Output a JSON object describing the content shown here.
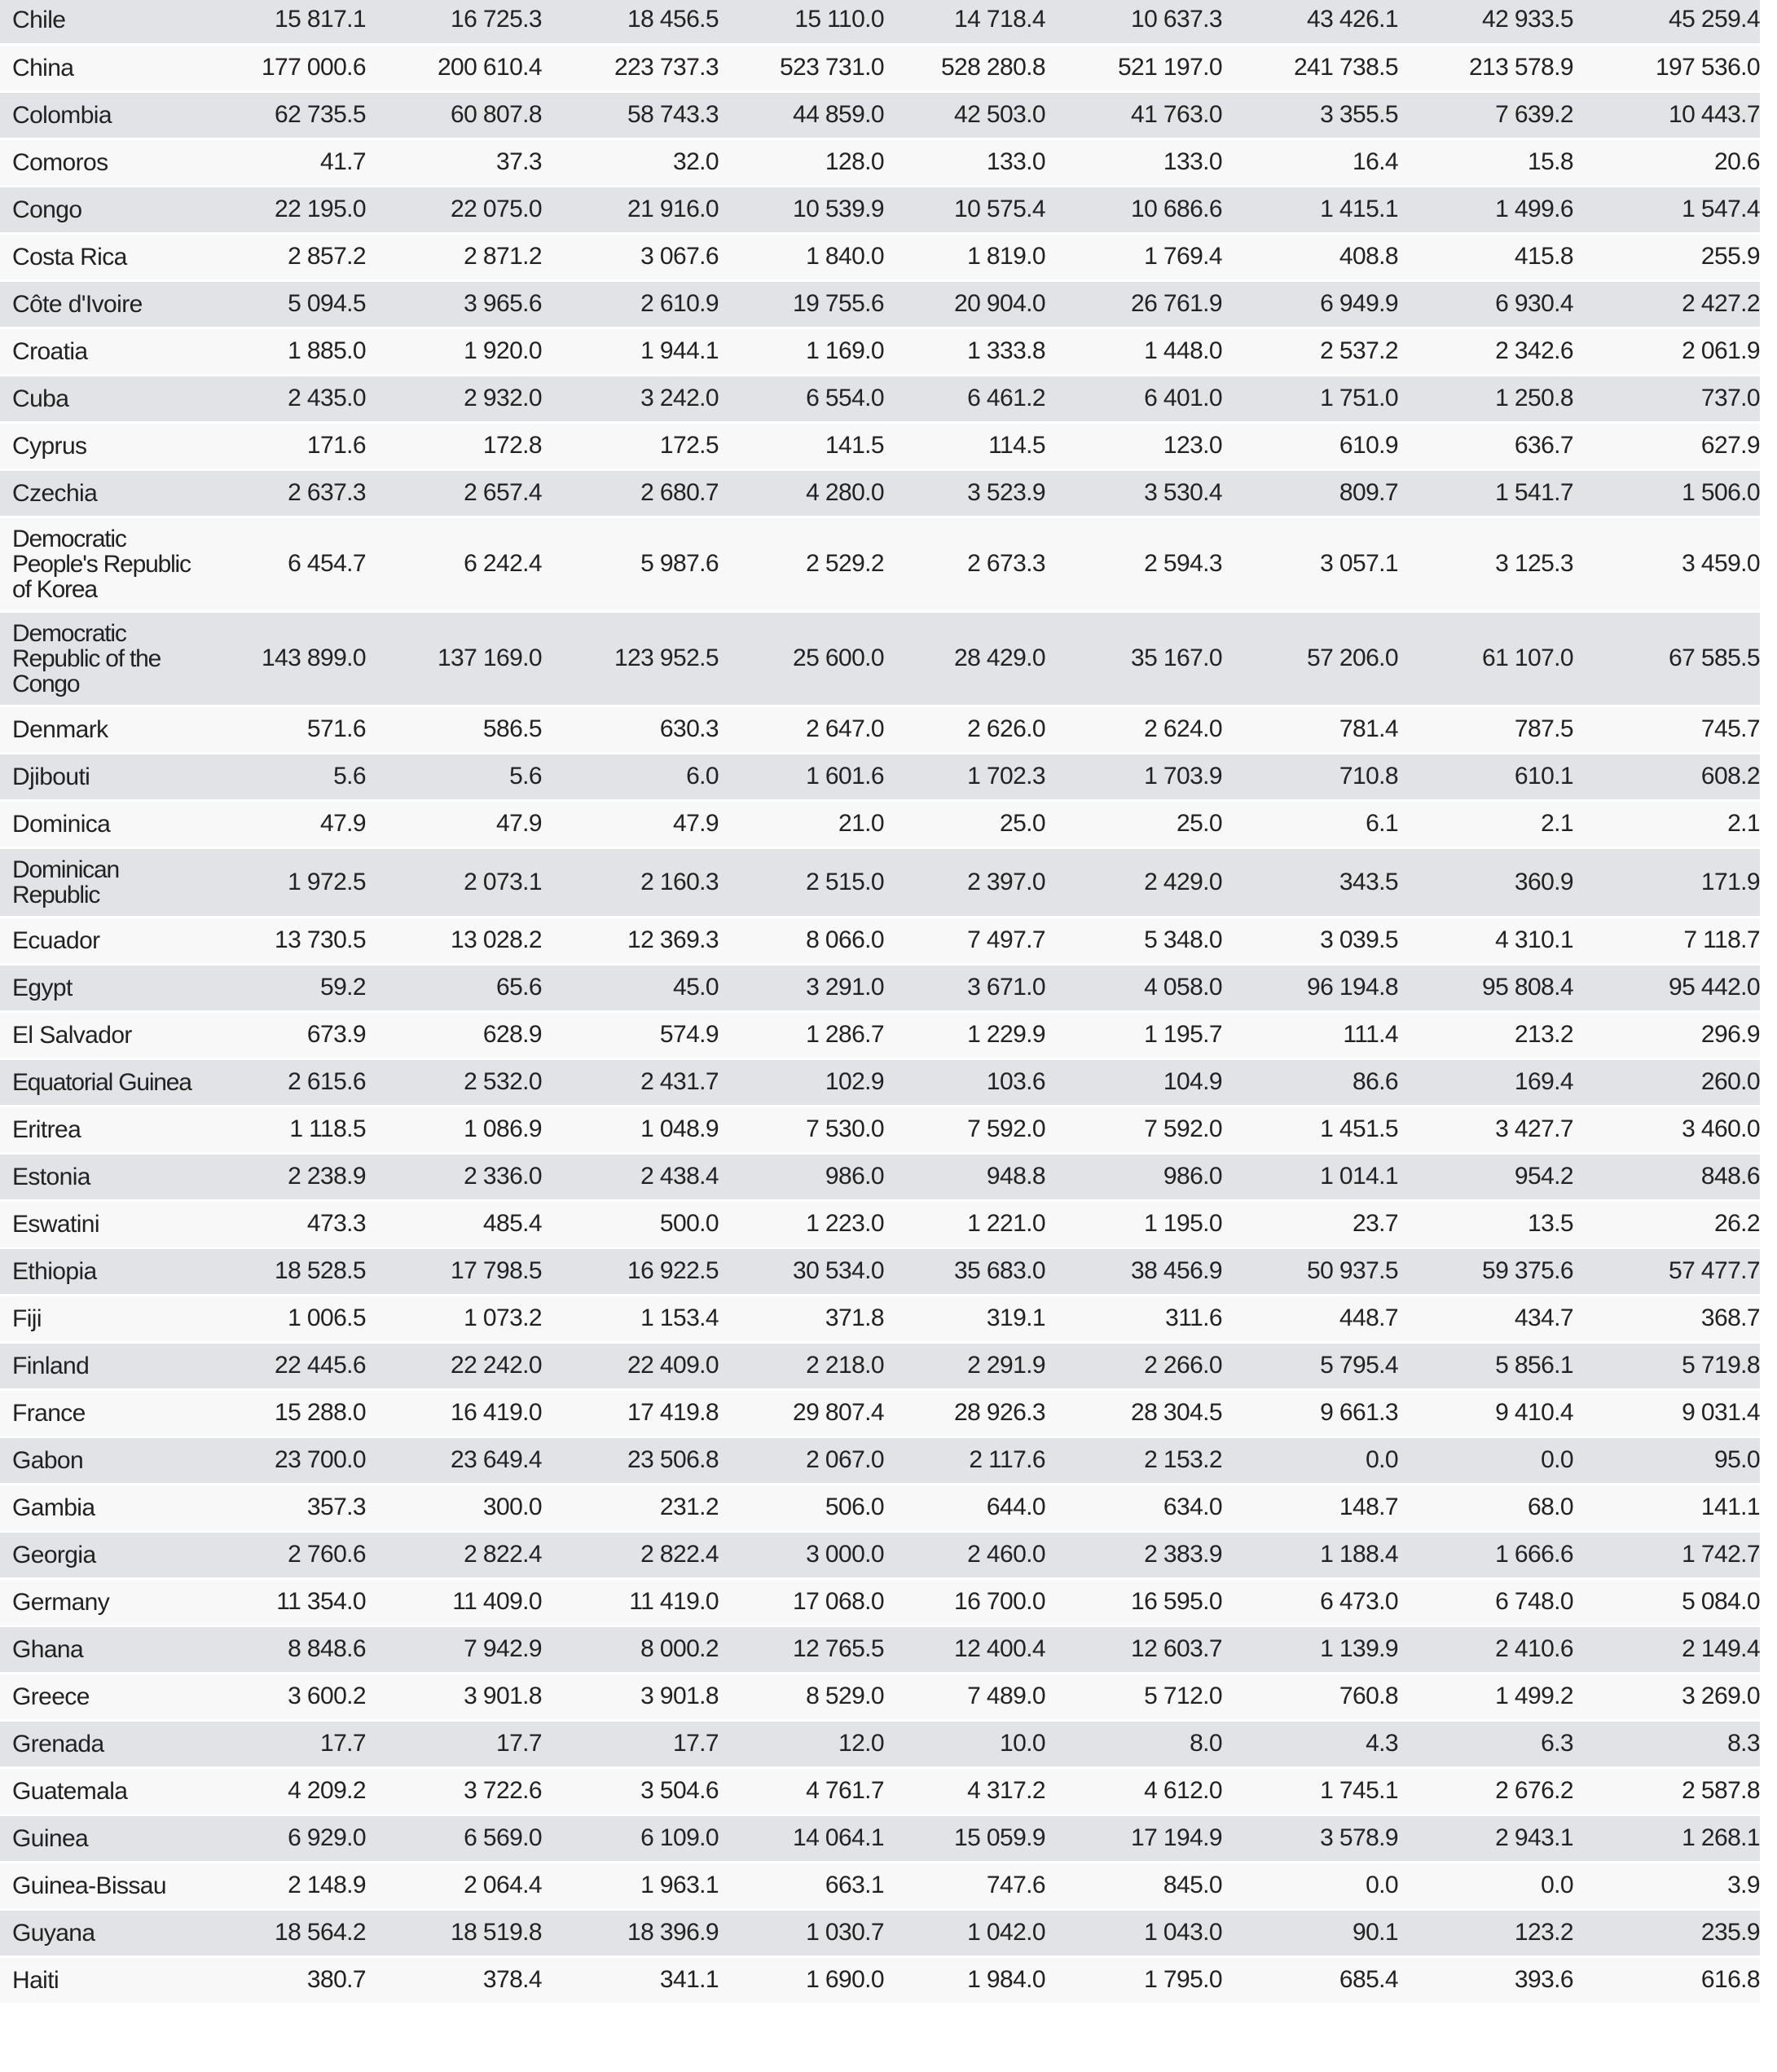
{
  "rows": [
    {
      "name": "Chile",
      "values": [
        "15 817.1",
        "16 725.3",
        "18 456.5",
        "15 110.0",
        "14 718.4",
        "10 637.3",
        "43 426.1",
        "42 933.5",
        "45 259.4"
      ]
    },
    {
      "name": "China",
      "values": [
        "177 000.6",
        "200 610.4",
        "223 737.3",
        "523 731.0",
        "528 280.8",
        "521 197.0",
        "241 738.5",
        "213 578.9",
        "197 536.0"
      ]
    },
    {
      "name": "Colombia",
      "values": [
        "62 735.5",
        "60 807.8",
        "58 743.3",
        "44 859.0",
        "42 503.0",
        "41 763.0",
        "3 355.5",
        "7 639.2",
        "10 443.7"
      ]
    },
    {
      "name": "Comoros",
      "values": [
        "41.7",
        "37.3",
        "32.0",
        "128.0",
        "133.0",
        "133.0",
        "16.4",
        "15.8",
        "20.6"
      ]
    },
    {
      "name": "Congo",
      "values": [
        "22 195.0",
        "22 075.0",
        "21 916.0",
        "10 539.9",
        "10 575.4",
        "10 686.6",
        "1 415.1",
        "1 499.6",
        "1 547.4"
      ]
    },
    {
      "name": "Costa Rica",
      "values": [
        "2 857.2",
        "2 871.2",
        "3 067.6",
        "1 840.0",
        "1 819.0",
        "1 769.4",
        "408.8",
        "415.8",
        "255.9"
      ]
    },
    {
      "name": "Côte d'Ivoire",
      "values": [
        "5 094.5",
        "3 965.6",
        "2 610.9",
        "19 755.6",
        "20 904.0",
        "26 761.9",
        "6 949.9",
        "6 930.4",
        "2 427.2"
      ]
    },
    {
      "name": "Croatia",
      "values": [
        "1 885.0",
        "1 920.0",
        "1 944.1",
        "1 169.0",
        "1 333.8",
        "1 448.0",
        "2 537.2",
        "2 342.6",
        "2 061.9"
      ]
    },
    {
      "name": "Cuba",
      "values": [
        "2 435.0",
        "2 932.0",
        "3 242.0",
        "6 554.0",
        "6 461.2",
        "6 401.0",
        "1 751.0",
        "1 250.8",
        "737.0"
      ]
    },
    {
      "name": "Cyprus",
      "values": [
        "171.6",
        "172.8",
        "172.5",
        "141.5",
        "114.5",
        "123.0",
        "610.9",
        "636.7",
        "627.9"
      ]
    },
    {
      "name": "Czechia",
      "values": [
        "2 637.3",
        "2 657.4",
        "2 680.7",
        "4 280.0",
        "3 523.9",
        "3 530.4",
        "809.7",
        "1 541.7",
        "1 506.0"
      ]
    },
    {
      "name": "Democratic People's Republic of Korea",
      "values": [
        "6 454.7",
        "6 242.4",
        "5 987.6",
        "2 529.2",
        "2 673.3",
        "2 594.3",
        "3 057.1",
        "3 125.3",
        "3 459.0"
      ]
    },
    {
      "name": "Democratic Republic of the Congo",
      "values": [
        "143 899.0",
        "137 169.0",
        "123 952.5",
        "25 600.0",
        "28 429.0",
        "35 167.0",
        "57 206.0",
        "61 107.0",
        "67 585.5"
      ]
    },
    {
      "name": "Denmark",
      "values": [
        "571.6",
        "586.5",
        "630.3",
        "2 647.0",
        "2 626.0",
        "2 624.0",
        "781.4",
        "787.5",
        "745.7"
      ]
    },
    {
      "name": "Djibouti",
      "values": [
        "5.6",
        "5.6",
        "6.0",
        "1 601.6",
        "1 702.3",
        "1 703.9",
        "710.8",
        "610.1",
        "608.2"
      ]
    },
    {
      "name": "Dominica",
      "values": [
        "47.9",
        "47.9",
        "47.9",
        "21.0",
        "25.0",
        "25.0",
        "6.1",
        "2.1",
        "2.1"
      ]
    },
    {
      "name": "Dominican Republic",
      "values": [
        "1 972.5",
        "2 073.1",
        "2 160.3",
        "2 515.0",
        "2 397.0",
        "2 429.0",
        "343.5",
        "360.9",
        "171.9"
      ]
    },
    {
      "name": "Ecuador",
      "values": [
        "13 730.5",
        "13 028.2",
        "12 369.3",
        "8 066.0",
        "7 497.7",
        "5 348.0",
        "3 039.5",
        "4 310.1",
        "7 118.7"
      ]
    },
    {
      "name": "Egypt",
      "values": [
        "59.2",
        "65.6",
        "45.0",
        "3 291.0",
        "3 671.0",
        "4 058.0",
        "96 194.8",
        "95 808.4",
        "95 442.0"
      ]
    },
    {
      "name": "El Salvador",
      "values": [
        "673.9",
        "628.9",
        "574.9",
        "1 286.7",
        "1 229.9",
        "1 195.7",
        "111.4",
        "213.2",
        "296.9"
      ]
    },
    {
      "name": "Equatorial Guinea",
      "values": [
        "2 615.6",
        "2 532.0",
        "2 431.7",
        "102.9",
        "103.6",
        "104.9",
        "86.6",
        "169.4",
        "260.0"
      ]
    },
    {
      "name": "Eritrea",
      "values": [
        "1 118.5",
        "1 086.9",
        "1 048.9",
        "7 530.0",
        "7 592.0",
        "7 592.0",
        "1 451.5",
        "3 427.7",
        "3 460.0"
      ]
    },
    {
      "name": "Estonia",
      "values": [
        "2 238.9",
        "2 336.0",
        "2 438.4",
        "986.0",
        "948.8",
        "986.0",
        "1 014.1",
        "954.2",
        "848.6"
      ]
    },
    {
      "name": "Eswatini",
      "values": [
        "473.3",
        "485.4",
        "500.0",
        "1 223.0",
        "1 221.0",
        "1 195.0",
        "23.7",
        "13.5",
        "26.2"
      ]
    },
    {
      "name": "Ethiopia",
      "values": [
        "18 528.5",
        "17 798.5",
        "16 922.5",
        "30 534.0",
        "35 683.0",
        "38 456.9",
        "50 937.5",
        "59 375.6",
        "57 477.7"
      ]
    },
    {
      "name": "Fiji",
      "values": [
        "1 006.5",
        "1 073.2",
        "1 153.4",
        "371.8",
        "319.1",
        "311.6",
        "448.7",
        "434.7",
        "368.7"
      ]
    },
    {
      "name": "Finland",
      "values": [
        "22 445.6",
        "22 242.0",
        "22 409.0",
        "2 218.0",
        "2 291.9",
        "2 266.0",
        "5 795.4",
        "5 856.1",
        "5 719.8"
      ]
    },
    {
      "name": "France",
      "values": [
        "15 288.0",
        "16 419.0",
        "17 419.8",
        "29 807.4",
        "28 926.3",
        "28 304.5",
        "9 661.3",
        "9 410.4",
        "9 031.4"
      ]
    },
    {
      "name": "Gabon",
      "values": [
        "23 700.0",
        "23 649.4",
        "23 506.8",
        "2 067.0",
        "2 117.6",
        "2 153.2",
        "0.0",
        "0.0",
        "95.0"
      ]
    },
    {
      "name": "Gambia",
      "values": [
        "357.3",
        "300.0",
        "231.2",
        "506.0",
        "644.0",
        "634.0",
        "148.7",
        "68.0",
        "141.1"
      ]
    },
    {
      "name": "Georgia",
      "values": [
        "2 760.6",
        "2 822.4",
        "2 822.4",
        "3 000.0",
        "2 460.0",
        "2 383.9",
        "1 188.4",
        "1 666.6",
        "1 742.7"
      ]
    },
    {
      "name": "Germany",
      "values": [
        "11 354.0",
        "11 409.0",
        "11 419.0",
        "17 068.0",
        "16 700.0",
        "16 595.0",
        "6 473.0",
        "6 748.0",
        "5 084.0"
      ]
    },
    {
      "name": "Ghana",
      "values": [
        "8 848.6",
        "7 942.9",
        "8 000.2",
        "12 765.5",
        "12 400.4",
        "12 603.7",
        "1 139.9",
        "2 410.6",
        "2 149.4"
      ]
    },
    {
      "name": "Greece",
      "values": [
        "3 600.2",
        "3 901.8",
        "3 901.8",
        "8 529.0",
        "7 489.0",
        "5 712.0",
        "760.8",
        "1 499.2",
        "3 269.0"
      ]
    },
    {
      "name": "Grenada",
      "values": [
        "17.7",
        "17.7",
        "17.7",
        "12.0",
        "10.0",
        "8.0",
        "4.3",
        "6.3",
        "8.3"
      ]
    },
    {
      "name": "Guatemala",
      "values": [
        "4 209.2",
        "3 722.6",
        "3 504.6",
        "4 761.7",
        "4 317.2",
        "4 612.0",
        "1 745.1",
        "2 676.2",
        "2 587.8"
      ]
    },
    {
      "name": "Guinea",
      "values": [
        "6 929.0",
        "6 569.0",
        "6 109.0",
        "14 064.1",
        "15 059.9",
        "17 194.9",
        "3 578.9",
        "2 943.1",
        "1 268.1"
      ]
    },
    {
      "name": "Guinea-Bissau",
      "values": [
        "2 148.9",
        "2 064.4",
        "1 963.1",
        "663.1",
        "747.6",
        "845.0",
        "0.0",
        "0.0",
        "3.9"
      ]
    },
    {
      "name": "Guyana",
      "values": [
        "18 564.2",
        "18 519.8",
        "18 396.9",
        "1 030.7",
        "1 042.0",
        "1 043.0",
        "90.1",
        "123.2",
        "235.9"
      ]
    },
    {
      "name": "Haiti",
      "values": [
        "380.7",
        "378.4",
        "341.1",
        "1 690.0",
        "1 984.0",
        "1 795.0",
        "685.4",
        "393.6",
        "616.8"
      ]
    }
  ]
}
